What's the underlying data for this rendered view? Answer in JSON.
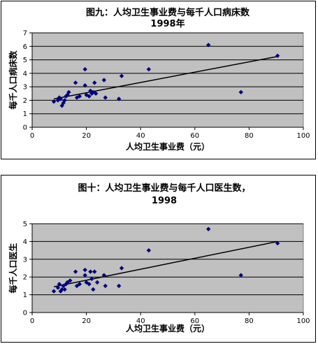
{
  "chart_data": [
    {
      "type": "scatter",
      "title": "图九：人均卫生事业费与每千人口病床数",
      "subtitle": "1998年",
      "xlabel": "人均卫生事业费（元）",
      "ylabel": "每千人口病床数",
      "xlim": [
        0,
        100
      ],
      "ylim": [
        0,
        7
      ],
      "xticks": [
        0,
        20,
        40,
        60,
        80,
        100
      ],
      "yticks": [
        0,
        1,
        2,
        3,
        4,
        5,
        6,
        7
      ],
      "grid": true,
      "plot_bg": "#c0c0c0",
      "marker_color": "#000080",
      "trendline": {
        "x": [
          8,
          90.5
        ],
        "y": [
          2.1,
          5.25
        ]
      },
      "points": [
        {
          "x": 8,
          "y": 1.9
        },
        {
          "x": 9.5,
          "y": 2.0
        },
        {
          "x": 10,
          "y": 2.2
        },
        {
          "x": 10.5,
          "y": 2.1
        },
        {
          "x": 11,
          "y": 1.6
        },
        {
          "x": 11.5,
          "y": 1.8
        },
        {
          "x": 12,
          "y": 2.0
        },
        {
          "x": 12.5,
          "y": 2.3
        },
        {
          "x": 13,
          "y": 2.4
        },
        {
          "x": 13.5,
          "y": 2.6
        },
        {
          "x": 16,
          "y": 3.3
        },
        {
          "x": 16.5,
          "y": 2.2
        },
        {
          "x": 17.5,
          "y": 2.3
        },
        {
          "x": 19.5,
          "y": 4.3
        },
        {
          "x": 19.5,
          "y": 3.1
        },
        {
          "x": 20,
          "y": 2.4
        },
        {
          "x": 21,
          "y": 2.3
        },
        {
          "x": 21.5,
          "y": 2.7
        },
        {
          "x": 22,
          "y": 2.5
        },
        {
          "x": 22.5,
          "y": 2.6
        },
        {
          "x": 23,
          "y": 3.3
        },
        {
          "x": 23.5,
          "y": 2.5
        },
        {
          "x": 26.5,
          "y": 3.5
        },
        {
          "x": 27,
          "y": 2.2
        },
        {
          "x": 32,
          "y": 2.1
        },
        {
          "x": 33,
          "y": 3.8
        },
        {
          "x": 43,
          "y": 4.3
        },
        {
          "x": 65,
          "y": 6.1
        },
        {
          "x": 77,
          "y": 2.6
        },
        {
          "x": 90.5,
          "y": 5.3
        }
      ]
    },
    {
      "type": "scatter",
      "title": "图十：人均卫生事业费与每千人口医生数，",
      "subtitle": "1998",
      "xlabel": "人均卫生事业费（元）",
      "ylabel": "每千人口医生",
      "xlim": [
        0,
        100
      ],
      "ylim": [
        0,
        5
      ],
      "xticks": [
        0,
        20,
        40,
        60,
        80,
        100
      ],
      "yticks": [
        0,
        1,
        2,
        3,
        4,
        5
      ],
      "grid": true,
      "plot_bg": "#c0c0c0",
      "marker_color": "#000080",
      "trendline": {
        "x": [
          8,
          90.5
        ],
        "y": [
          1.45,
          4.0
        ]
      },
      "points": [
        {
          "x": 8,
          "y": 1.2
        },
        {
          "x": 9.5,
          "y": 1.4
        },
        {
          "x": 10,
          "y": 1.6
        },
        {
          "x": 10.5,
          "y": 1.2
        },
        {
          "x": 11,
          "y": 1.3
        },
        {
          "x": 11.5,
          "y": 1.5
        },
        {
          "x": 12,
          "y": 1.3
        },
        {
          "x": 12.5,
          "y": 1.6
        },
        {
          "x": 13,
          "y": 1.7
        },
        {
          "x": 14,
          "y": 1.8
        },
        {
          "x": 16,
          "y": 2.3
        },
        {
          "x": 16.5,
          "y": 1.5
        },
        {
          "x": 17.5,
          "y": 1.6
        },
        {
          "x": 19.5,
          "y": 2.4
        },
        {
          "x": 19.5,
          "y": 2.1
        },
        {
          "x": 20,
          "y": 1.7
        },
        {
          "x": 21,
          "y": 1.6
        },
        {
          "x": 21.5,
          "y": 2.3
        },
        {
          "x": 22,
          "y": 1.9
        },
        {
          "x": 22.5,
          "y": 1.3
        },
        {
          "x": 23,
          "y": 2.3
        },
        {
          "x": 24,
          "y": 1.7
        },
        {
          "x": 26.5,
          "y": 2.1
        },
        {
          "x": 27,
          "y": 1.5
        },
        {
          "x": 32,
          "y": 1.5
        },
        {
          "x": 33,
          "y": 2.5
        },
        {
          "x": 43,
          "y": 3.5
        },
        {
          "x": 65,
          "y": 4.7
        },
        {
          "x": 77,
          "y": 2.1
        },
        {
          "x": 90.5,
          "y": 3.9
        }
      ]
    }
  ]
}
